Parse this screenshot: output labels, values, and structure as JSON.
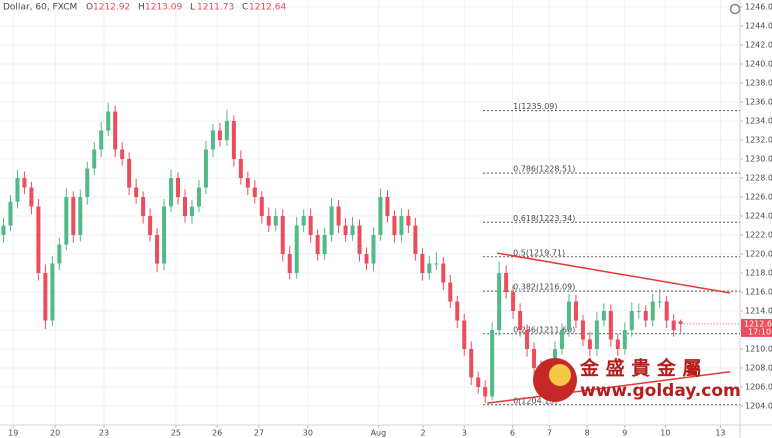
{
  "chart_data": {
    "type": "candlestick",
    "symbol": "Dollar, 60, FXCM",
    "ohlc_header": [
      {
        "label": "O",
        "value": 1212.92
      },
      {
        "label": "H",
        "value": 1213.09
      },
      {
        "label": "L",
        "value": 1211.73
      },
      {
        "label": "C",
        "value": 1212.64
      }
    ],
    "up_color": "#53b987",
    "down_color": "#eb4d5c",
    "xlim": [
      -0.5,
      105.5
    ],
    "ylim": [
      1202,
      1246.74
    ],
    "grid": true,
    "xticks": [
      {
        "value": 1.4,
        "label": "19"
      },
      {
        "value": 7.4,
        "label": "20"
      },
      {
        "value": 14.4,
        "label": "23"
      },
      {
        "value": 24.7,
        "label": "25"
      },
      {
        "value": 30.6,
        "label": "26"
      },
      {
        "value": 36.6,
        "label": "27"
      },
      {
        "value": 43.6,
        "label": "30"
      },
      {
        "value": 53.7,
        "label": "Aug"
      },
      {
        "value": 60.1,
        "label": "2"
      },
      {
        "value": 66,
        "label": "3"
      },
      {
        "value": 72.9,
        "label": "6"
      },
      {
        "value": 78.2,
        "label": "7"
      },
      {
        "value": 83.6,
        "label": "8"
      },
      {
        "value": 89,
        "label": "9"
      },
      {
        "value": 94.8,
        "label": "10"
      },
      {
        "value": 102.7,
        "label": "13"
      }
    ],
    "yticks": [
      {
        "value": 1204,
        "label": "1204.00"
      },
      {
        "value": 1206,
        "label": "1206.00"
      },
      {
        "value": 1208,
        "label": "1208.00"
      },
      {
        "value": 1210,
        "label": "1210.00"
      },
      {
        "value": 1212,
        "label": "1212.00"
      },
      {
        "value": 1214,
        "label": "1214.00"
      },
      {
        "value": 1216,
        "label": "1216.00"
      },
      {
        "value": 1218,
        "label": "1218.00"
      },
      {
        "value": 1220,
        "label": "1220.00"
      },
      {
        "value": 1222,
        "label": "1222.00"
      },
      {
        "value": 1224,
        "label": "1224.00"
      },
      {
        "value": 1226,
        "label": "1226.00"
      },
      {
        "value": 1228,
        "label": "1228.00"
      },
      {
        "value": 1230,
        "label": "1230.00"
      },
      {
        "value": 1232,
        "label": "1232.00"
      },
      {
        "value": 1234,
        "label": "1234.00"
      },
      {
        "value": 1236,
        "label": "1236.00"
      },
      {
        "value": 1238,
        "label": "1238.00"
      },
      {
        "value": 1240,
        "label": "1240.00"
      },
      {
        "value": 1242,
        "label": "1242.00"
      },
      {
        "value": 1244,
        "label": "1244.00"
      },
      {
        "value": 1246,
        "label": "1246.00"
      }
    ],
    "candles": [
      [
        1222,
        1223.8,
        1221.2,
        1223
      ],
      [
        1223,
        1226.2,
        1222.4,
        1225.5
      ],
      [
        1225.5,
        1228.9,
        1224.8,
        1228
      ],
      [
        1228,
        1228.7,
        1226.3,
        1227
      ],
      [
        1227,
        1227.6,
        1224.2,
        1225
      ],
      [
        1225,
        1225.8,
        1217.2,
        1218
      ],
      [
        1218,
        1218.9,
        1212.1,
        1213
      ],
      [
        1213,
        1219.8,
        1212.4,
        1219
      ],
      [
        1219,
        1221.7,
        1218.3,
        1221
      ],
      [
        1221,
        1226.9,
        1220.4,
        1226
      ],
      [
        1226,
        1226.6,
        1221.2,
        1222
      ],
      [
        1222,
        1226.8,
        1221.3,
        1226
      ],
      [
        1226,
        1229.7,
        1225.2,
        1229
      ],
      [
        1229,
        1231.8,
        1228.3,
        1231
      ],
      [
        1231,
        1233.9,
        1230.2,
        1233
      ],
      [
        1233,
        1235.9,
        1232.4,
        1235
      ],
      [
        1235,
        1235.6,
        1230.2,
        1231
      ],
      [
        1231,
        1231.8,
        1229.3,
        1230
      ],
      [
        1230,
        1230.7,
        1226.2,
        1227
      ],
      [
        1227,
        1227.9,
        1225.3,
        1226
      ],
      [
        1226,
        1226.6,
        1223.2,
        1224
      ],
      [
        1224,
        1224.8,
        1221.3,
        1222
      ],
      [
        1222,
        1222.7,
        1218.1,
        1219
      ],
      [
        1219,
        1225.8,
        1218.3,
        1225
      ],
      [
        1225,
        1228.9,
        1224.4,
        1228
      ],
      [
        1228,
        1228.6,
        1225.2,
        1226
      ],
      [
        1226,
        1226.8,
        1223.3,
        1224
      ],
      [
        1224,
        1225.7,
        1223.2,
        1225
      ],
      [
        1225,
        1227.8,
        1224.4,
        1227
      ],
      [
        1227,
        1231.9,
        1226.3,
        1231
      ],
      [
        1231,
        1233.7,
        1230.2,
        1233
      ],
      [
        1233,
        1233.8,
        1231.3,
        1232
      ],
      [
        1232,
        1235.2,
        1231.4,
        1234
      ],
      [
        1234,
        1234.6,
        1229.2,
        1230
      ],
      [
        1230,
        1230.9,
        1227.3,
        1228
      ],
      [
        1228,
        1228.7,
        1226.2,
        1227
      ],
      [
        1227,
        1227.8,
        1225.3,
        1226
      ],
      [
        1226,
        1226.6,
        1223.2,
        1224
      ],
      [
        1224,
        1224.9,
        1222.3,
        1223
      ],
      [
        1223,
        1224.8,
        1222.4,
        1224
      ],
      [
        1224,
        1224.7,
        1219.2,
        1220
      ],
      [
        1220,
        1220.8,
        1217.3,
        1218
      ],
      [
        1218,
        1223.9,
        1217.4,
        1223
      ],
      [
        1223,
        1224.7,
        1222.3,
        1224
      ],
      [
        1224,
        1224.8,
        1221.2,
        1222
      ],
      [
        1222,
        1222.6,
        1219.3,
        1220
      ],
      [
        1220,
        1222.8,
        1219.4,
        1222
      ],
      [
        1222,
        1225.9,
        1221.3,
        1225
      ],
      [
        1225,
        1225.7,
        1222.2,
        1223
      ],
      [
        1223,
        1223.8,
        1221.3,
        1222
      ],
      [
        1222,
        1223.9,
        1221.4,
        1223
      ],
      [
        1223,
        1223.6,
        1219.2,
        1220
      ],
      [
        1220,
        1220.7,
        1218.3,
        1219
      ],
      [
        1219,
        1222.8,
        1218.2,
        1222
      ],
      [
        1222,
        1226.9,
        1221.4,
        1226
      ],
      [
        1226,
        1226.7,
        1223.3,
        1224
      ],
      [
        1224,
        1224.6,
        1221.2,
        1222
      ],
      [
        1222,
        1224.8,
        1221.3,
        1224
      ],
      [
        1224,
        1224.7,
        1222.2,
        1223
      ],
      [
        1223,
        1223.8,
        1219.3,
        1220
      ],
      [
        1220,
        1220.6,
        1217.2,
        1218
      ],
      [
        1218,
        1219.8,
        1217.3,
        1219
      ],
      [
        1219,
        1220.2,
        1218.3,
        1219
      ],
      [
        1219,
        1219.7,
        1216.2,
        1217
      ],
      [
        1217,
        1217.8,
        1214.3,
        1215
      ],
      [
        1215,
        1215.6,
        1212.2,
        1213
      ],
      [
        1213,
        1213.7,
        1209.3,
        1210
      ],
      [
        1210,
        1210.8,
        1206.2,
        1207
      ],
      [
        1207,
        1207.6,
        1205.3,
        1206
      ],
      [
        1206,
        1206.7,
        1204.3,
        1205
      ],
      [
        1205,
        1212.8,
        1204.6,
        1212
      ],
      [
        1212,
        1219.2,
        1211.4,
        1218
      ],
      [
        1218,
        1218.8,
        1215.3,
        1216
      ],
      [
        1216,
        1216.7,
        1213.2,
        1214
      ],
      [
        1214,
        1214.8,
        1211.3,
        1212
      ],
      [
        1212,
        1212.6,
        1209.2,
        1210
      ],
      [
        1210,
        1210.7,
        1207.3,
        1208
      ],
      [
        1208,
        1208.8,
        1206.2,
        1207
      ],
      [
        1207,
        1208.9,
        1206.4,
        1208
      ],
      [
        1208,
        1210.8,
        1207.3,
        1210
      ],
      [
        1210,
        1212.7,
        1209.4,
        1212
      ],
      [
        1212,
        1215.8,
        1211.3,
        1215
      ],
      [
        1215,
        1215.7,
        1212.2,
        1213
      ],
      [
        1213,
        1213.6,
        1210.3,
        1211
      ],
      [
        1211,
        1211.8,
        1209.2,
        1210
      ],
      [
        1210,
        1213.9,
        1209.3,
        1213
      ],
      [
        1213,
        1214.8,
        1212.4,
        1214
      ],
      [
        1214,
        1214.7,
        1210.2,
        1211
      ],
      [
        1211,
        1211.6,
        1209.3,
        1210
      ],
      [
        1210,
        1212.8,
        1209.4,
        1212
      ],
      [
        1212,
        1214.9,
        1211.3,
        1214
      ],
      [
        1214,
        1214.8,
        1213.2,
        1214
      ],
      [
        1214,
        1214.6,
        1212.3,
        1213
      ],
      [
        1213,
        1215.8,
        1212.4,
        1215
      ],
      [
        1215,
        1216.3,
        1214.3,
        1215
      ],
      [
        1215,
        1215.6,
        1212.2,
        1213
      ],
      [
        1213,
        1213.7,
        1211.3,
        1212
      ],
      [
        1212.92,
        1213.09,
        1211.73,
        1212.64
      ]
    ],
    "countdown": "17:10",
    "fib_start": 68.7,
    "fib_levels": [
      {
        "value": 1235.09,
        "label": "1(1235.09)"
      },
      {
        "value": 1228.51,
        "label": "0.786(1228.51)"
      },
      {
        "value": 1223.34,
        "label": "0.618(1223.34)"
      },
      {
        "value": 1219.71,
        "label": "0.5(1219.71)"
      },
      {
        "value": 1216.09,
        "label": "0.382(1216.09)"
      },
      {
        "value": 1211.6,
        "label": "0.236(1211.60)"
      },
      {
        "value": 1204.13,
        "label": "0(1204.13)"
      }
    ],
    "trendline_color": "#e53935",
    "trendlines": [
      {
        "x": [
          70.7,
          104.1
        ],
        "y": [
          1220.1,
          1215.9
        ]
      },
      {
        "x": [
          69.3,
          104.1
        ],
        "y": [
          1204.3,
          1207.6
        ]
      }
    ],
    "watermark": {
      "name": "金 盛 貴 金 屬",
      "url": "www.golday.com"
    }
  }
}
